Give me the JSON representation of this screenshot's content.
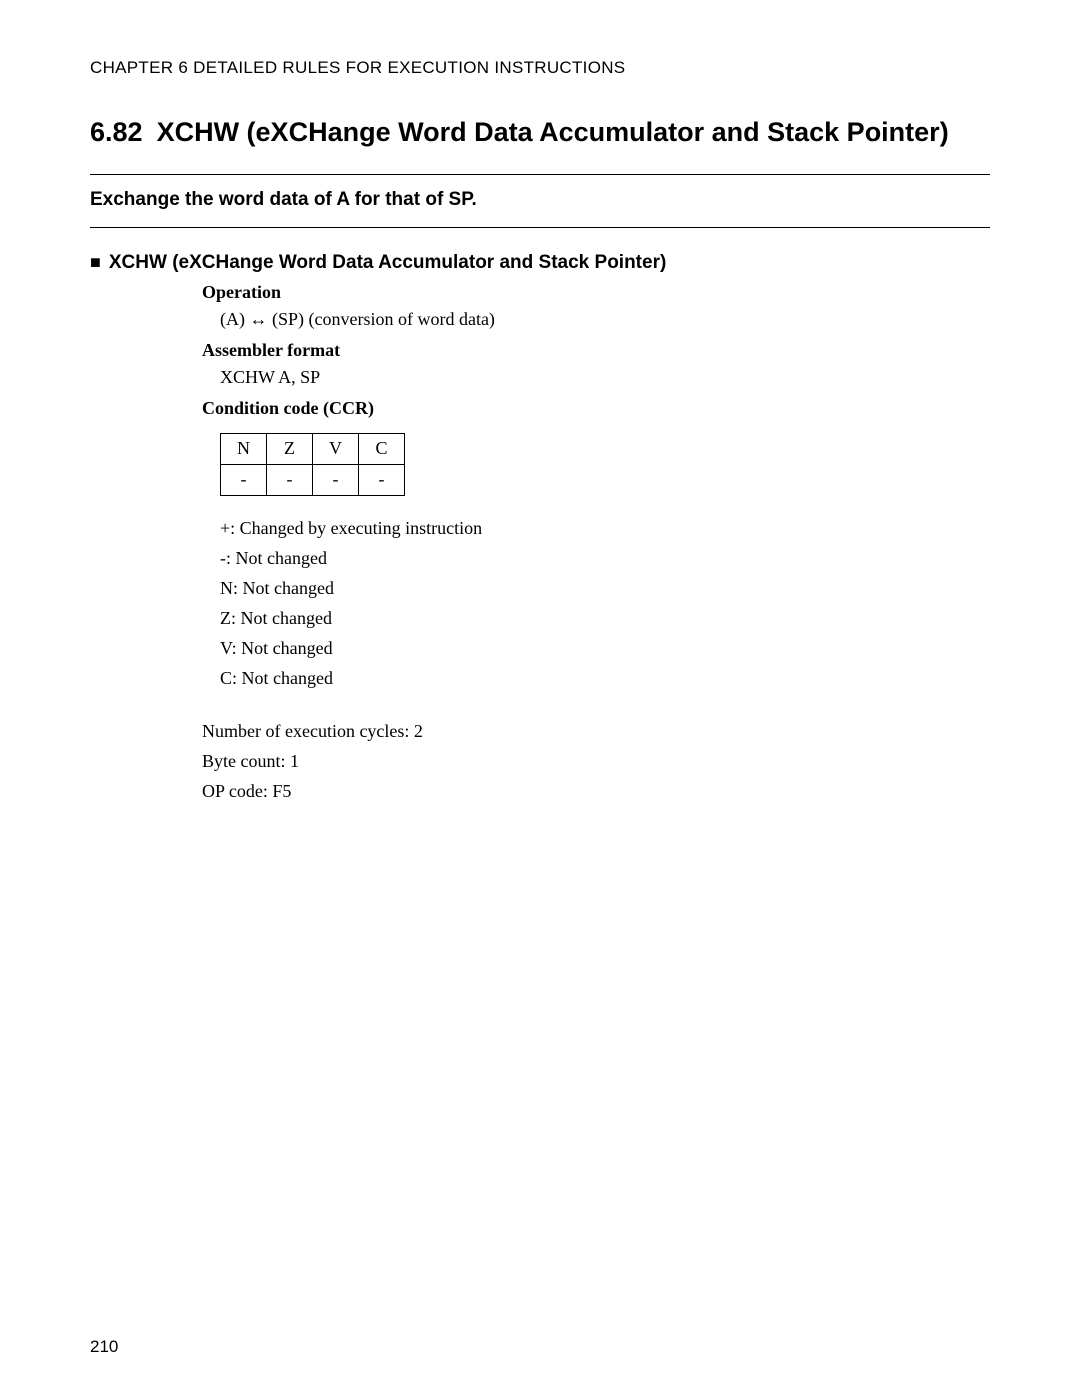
{
  "chapter_header": "CHAPTER 6  DETAILED RULES FOR EXECUTION INSTRUCTIONS",
  "section_number": "6.82",
  "section_title": "XCHW (eXCHange Word Data Accumulator and Stack Pointer)",
  "summary": "Exchange the word data of A for that of SP.",
  "subsection_heading": "XCHW (eXCHange Word Data Accumulator and Stack Pointer)",
  "operation_label": "Operation",
  "operation_value": "(A) ↔ (SP) (conversion of word data)",
  "assembler_label": "Assembler format",
  "assembler_value": "XCHW A, SP",
  "ccr_label": "Condition code (CCR)",
  "ccr_table": {
    "headers": [
      "N",
      "Z",
      "V",
      "C"
    ],
    "values": [
      "-",
      "-",
      "-",
      "-"
    ]
  },
  "legend": [
    "+: Changed by executing instruction",
    "-: Not changed",
    "N: Not changed",
    "Z: Not changed",
    "V: Not changed",
    "C: Not changed"
  ],
  "metrics": [
    "Number of execution cycles: 2",
    "Byte count: 1",
    "OP code: F5"
  ],
  "page_number": "210"
}
